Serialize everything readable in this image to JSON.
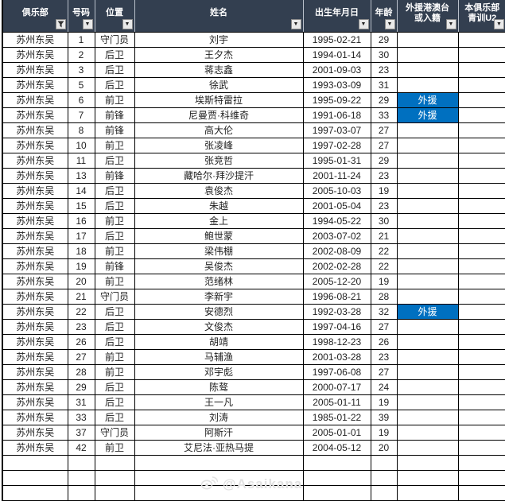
{
  "colors": {
    "header_bg": "#333F50",
    "header_text": "#FFFFFF",
    "foreign_cell_bg": "#0070C0",
    "grid": "#000000",
    "watermark": "#E2E2E2"
  },
  "table": {
    "columns": [
      {
        "line1": "俱乐部",
        "line2": "",
        "filter": "funnel"
      },
      {
        "line1": "号码",
        "line2": "",
        "filter": "dropdown"
      },
      {
        "line1": "位置",
        "line2": "",
        "filter": "dropdown"
      },
      {
        "line1": "姓名",
        "line2": "",
        "filter": "dropdown"
      },
      {
        "line1": "出生年月日",
        "line2": "",
        "filter": "dropdown"
      },
      {
        "line1": "年龄",
        "line2": "",
        "filter": "dropdown"
      },
      {
        "line1": "外援港澳台",
        "line2": "或入籍",
        "filter": "dropdown"
      },
      {
        "line1": "本俱乐部",
        "line2": "青训U2",
        "filter": "dropdown"
      }
    ],
    "rows": [
      {
        "club": "苏州东吴",
        "number": "1",
        "position": "守门员",
        "name": "刘宇",
        "dob": "1995-02-21",
        "age": "29",
        "foreign": "",
        "youth": ""
      },
      {
        "club": "苏州东吴",
        "number": "2",
        "position": "后卫",
        "name": "王夕杰",
        "dob": "1994-01-14",
        "age": "30",
        "foreign": "",
        "youth": ""
      },
      {
        "club": "苏州东吴",
        "number": "3",
        "position": "后卫",
        "name": "蒋志鑫",
        "dob": "2001-09-03",
        "age": "23",
        "foreign": "",
        "youth": ""
      },
      {
        "club": "苏州东吴",
        "number": "5",
        "position": "后卫",
        "name": "徐武",
        "dob": "1993-03-09",
        "age": "31",
        "foreign": "",
        "youth": ""
      },
      {
        "club": "苏州东吴",
        "number": "6",
        "position": "前卫",
        "name": "埃斯特雷拉",
        "dob": "1995-09-22",
        "age": "29",
        "foreign": "外援",
        "youth": ""
      },
      {
        "club": "苏州东吴",
        "number": "7",
        "position": "前锋",
        "name": "尼曼贾·科维奇",
        "dob": "1991-06-18",
        "age": "33",
        "foreign": "外援",
        "youth": ""
      },
      {
        "club": "苏州东吴",
        "number": "8",
        "position": "前锋",
        "name": "高大伦",
        "dob": "1997-03-07",
        "age": "27",
        "foreign": "",
        "youth": ""
      },
      {
        "club": "苏州东吴",
        "number": "10",
        "position": "前卫",
        "name": "张凌峰",
        "dob": "1997-02-28",
        "age": "27",
        "foreign": "",
        "youth": ""
      },
      {
        "club": "苏州东吴",
        "number": "11",
        "position": "后卫",
        "name": "张竞哲",
        "dob": "1995-01-31",
        "age": "29",
        "foreign": "",
        "youth": ""
      },
      {
        "club": "苏州东吴",
        "number": "13",
        "position": "前锋",
        "name": "藏哈尔·拜沙提汗",
        "dob": "2001-11-24",
        "age": "23",
        "foreign": "",
        "youth": ""
      },
      {
        "club": "苏州东吴",
        "number": "14",
        "position": "后卫",
        "name": "袁俊杰",
        "dob": "2005-10-03",
        "age": "19",
        "foreign": "",
        "youth": ""
      },
      {
        "club": "苏州东吴",
        "number": "15",
        "position": "后卫",
        "name": "朱越",
        "dob": "2001-05-04",
        "age": "23",
        "foreign": "",
        "youth": ""
      },
      {
        "club": "苏州东吴",
        "number": "16",
        "position": "前卫",
        "name": "金上",
        "dob": "1994-05-22",
        "age": "30",
        "foreign": "",
        "youth": ""
      },
      {
        "club": "苏州东吴",
        "number": "17",
        "position": "后卫",
        "name": "鲍世蒙",
        "dob": "2003-07-02",
        "age": "21",
        "foreign": "",
        "youth": ""
      },
      {
        "club": "苏州东吴",
        "number": "18",
        "position": "前卫",
        "name": "梁伟棚",
        "dob": "2002-08-09",
        "age": "22",
        "foreign": "",
        "youth": ""
      },
      {
        "club": "苏州东吴",
        "number": "19",
        "position": "前锋",
        "name": "吴俊杰",
        "dob": "2002-02-28",
        "age": "22",
        "foreign": "",
        "youth": ""
      },
      {
        "club": "苏州东吴",
        "number": "20",
        "position": "前卫",
        "name": "范绪林",
        "dob": "2005-12-20",
        "age": "19",
        "foreign": "",
        "youth": ""
      },
      {
        "club": "苏州东吴",
        "number": "21",
        "position": "守门员",
        "name": "李新宇",
        "dob": "1996-08-21",
        "age": "28",
        "foreign": "",
        "youth": ""
      },
      {
        "club": "苏州东吴",
        "number": "22",
        "position": "后卫",
        "name": "安德烈",
        "dob": "1992-03-28",
        "age": "32",
        "foreign": "外援",
        "youth": ""
      },
      {
        "club": "苏州东吴",
        "number": "23",
        "position": "后卫",
        "name": "文俊杰",
        "dob": "1997-04-16",
        "age": "27",
        "foreign": "",
        "youth": ""
      },
      {
        "club": "苏州东吴",
        "number": "26",
        "position": "后卫",
        "name": "胡靖",
        "dob": "1998-12-23",
        "age": "26",
        "foreign": "",
        "youth": ""
      },
      {
        "club": "苏州东吴",
        "number": "27",
        "position": "前卫",
        "name": "马辅渔",
        "dob": "2001-03-28",
        "age": "23",
        "foreign": "",
        "youth": ""
      },
      {
        "club": "苏州东吴",
        "number": "28",
        "position": "前卫",
        "name": "邓宇彪",
        "dob": "1997-06-08",
        "age": "27",
        "foreign": "",
        "youth": ""
      },
      {
        "club": "苏州东吴",
        "number": "29",
        "position": "后卫",
        "name": "陈骜",
        "dob": "2000-07-17",
        "age": "24",
        "foreign": "",
        "youth": ""
      },
      {
        "club": "苏州东吴",
        "number": "31",
        "position": "后卫",
        "name": "王一凡",
        "dob": "2005-01-11",
        "age": "19",
        "foreign": "",
        "youth": ""
      },
      {
        "club": "苏州东吴",
        "number": "33",
        "position": "后卫",
        "name": "刘涛",
        "dob": "1985-01-22",
        "age": "39",
        "foreign": "",
        "youth": ""
      },
      {
        "club": "苏州东吴",
        "number": "37",
        "position": "守门员",
        "name": "阿斯汗",
        "dob": "2005-01-01",
        "age": "19",
        "foreign": "",
        "youth": ""
      },
      {
        "club": "苏州东吴",
        "number": "42",
        "position": "前卫",
        "name": "艾尼法·亚热马提",
        "dob": "2004-05-12",
        "age": "20",
        "foreign": "",
        "youth": ""
      }
    ],
    "empty_row_count": 3,
    "foreign_badge_text": "外援"
  },
  "watermark": {
    "handle": "@Asaikana",
    "icon": "weibo-icon"
  }
}
